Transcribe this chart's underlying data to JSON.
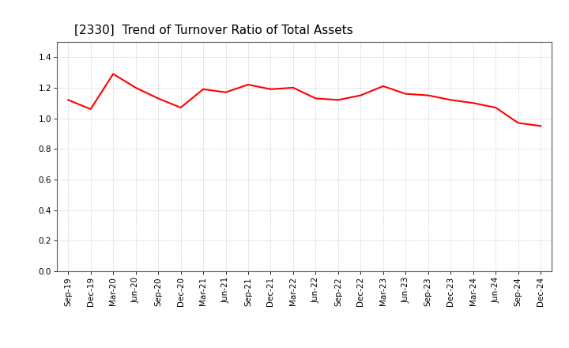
{
  "title": "[2330]  Trend of Turnover Ratio of Total Assets",
  "x_labels": [
    "Sep-19",
    "Dec-19",
    "Mar-20",
    "Jun-20",
    "Sep-20",
    "Dec-20",
    "Mar-21",
    "Jun-21",
    "Sep-21",
    "Dec-21",
    "Mar-22",
    "Jun-22",
    "Sep-22",
    "Dec-22",
    "Mar-23",
    "Jun-23",
    "Sep-23",
    "Dec-23",
    "Mar-24",
    "Jun-24",
    "Sep-24",
    "Dec-24"
  ],
  "y_values": [
    1.12,
    1.06,
    1.29,
    1.2,
    1.13,
    1.07,
    1.19,
    1.17,
    1.22,
    1.19,
    1.2,
    1.13,
    1.12,
    1.15,
    1.21,
    1.16,
    1.15,
    1.12,
    1.1,
    1.07,
    0.97,
    0.95
  ],
  "line_color": "#ff0000",
  "line_width": 1.5,
  "ylim": [
    0.0,
    1.5
  ],
  "yticks": [
    0.0,
    0.2,
    0.4,
    0.6,
    0.8,
    1.0,
    1.2,
    1.4
  ],
  "background_color": "#ffffff",
  "plot_bg_color": "#ffffff",
  "grid_color": "#aaaaaa",
  "title_fontsize": 11,
  "tick_fontsize": 7.5
}
